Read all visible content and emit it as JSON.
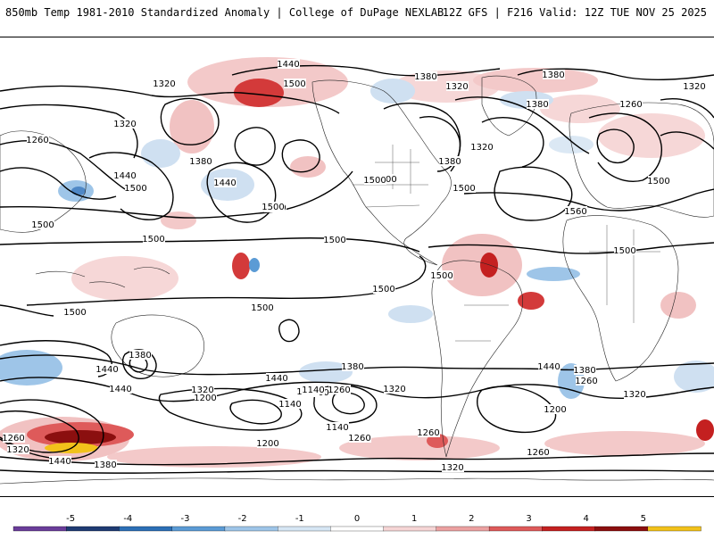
{
  "header": {
    "left_title": "850mb Temp 1981-2010 Standardized Anomaly | College of DuPage NEXLAB",
    "right_title": "12Z GFS | F216 Valid: 12Z TUE NOV 25 2025"
  },
  "colorbar": {
    "ticks": [
      "-5",
      "-4",
      "-3",
      "-2",
      "-1",
      "0",
      "1",
      "2",
      "3",
      "4",
      "5"
    ],
    "colors": [
      "#6a3d9a",
      "#1f3b73",
      "#2c6fb6",
      "#5b9bd5",
      "#9ec5e8",
      "#d6e6f4",
      "#ffffff",
      "#f6d5d5",
      "#eca1a1",
      "#de5a5a",
      "#c42020",
      "#8b0f0f",
      "#f2c21b"
    ]
  },
  "contour_labels": [
    "1440",
    "1500",
    "1380",
    "1320",
    "1380",
    "1320",
    "1320",
    "1380",
    "1260",
    "1320",
    "1260",
    "1380",
    "1320",
    "1380",
    "1440",
    "1500",
    "1500",
    "1440",
    "1440",
    "1500",
    "1500",
    "1500",
    "1500",
    "1500",
    "1560",
    "1500",
    "1500",
    "1500",
    "1500",
    "1500",
    "1500",
    "1500",
    "1440",
    "1380",
    "1260",
    "1320",
    "1440",
    "1380",
    "1440",
    "1320",
    "1260",
    "1200",
    "1140",
    "1320",
    "1260",
    "1200",
    "1140",
    "1380",
    "1440",
    "1260",
    "1200",
    "1260",
    "1140",
    "1260",
    "1260",
    "1320",
    "1440",
    "1380",
    "1320",
    "1260"
  ]
}
